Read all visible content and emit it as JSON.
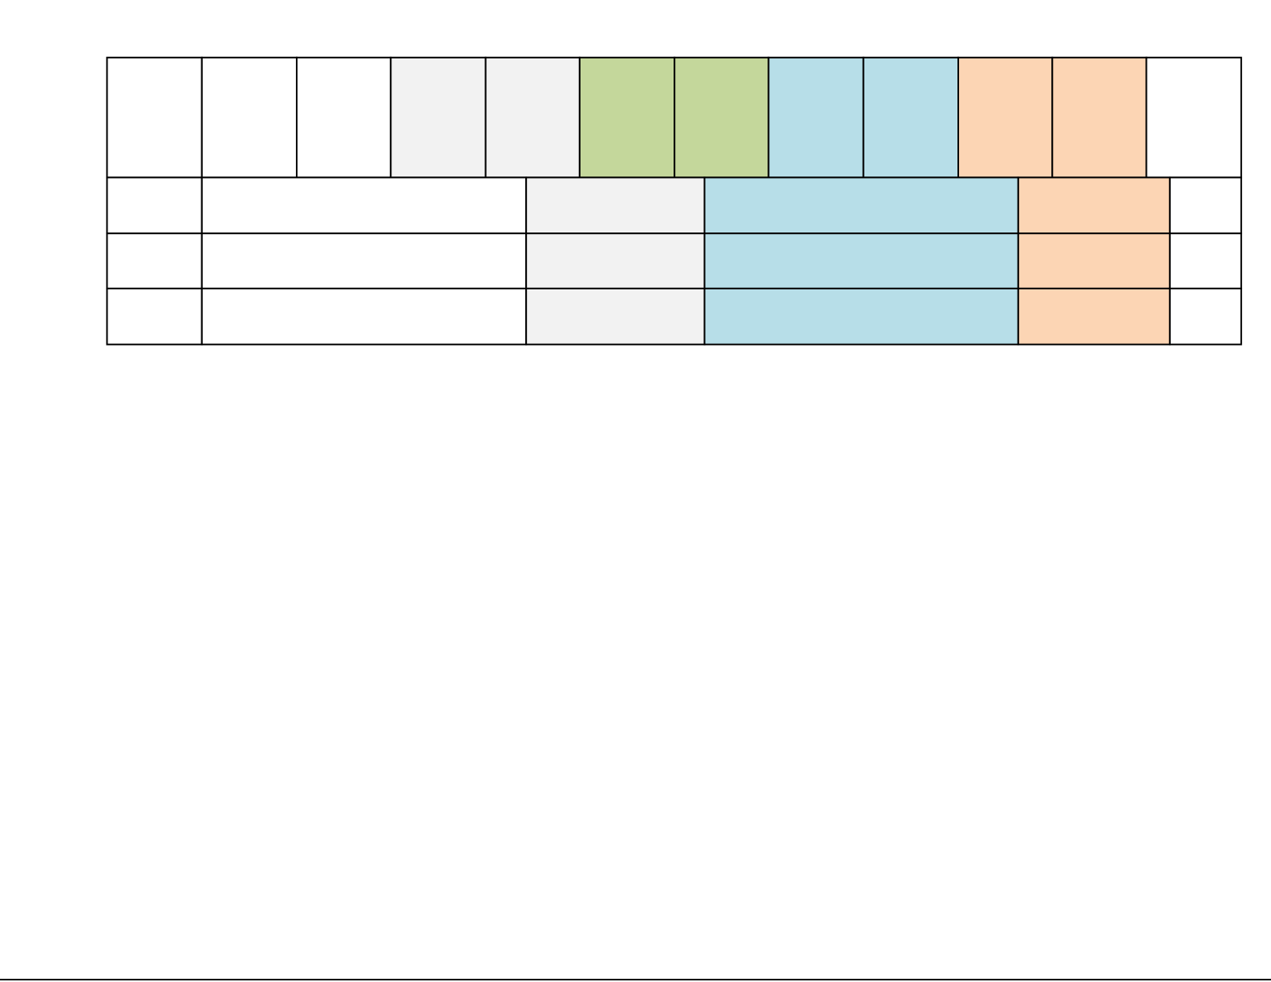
{
  "table": {
    "header_colors": [
      "#ffffff",
      "#ffffff",
      "#ffffff",
      "#f2f2f2",
      "#f2f2f2",
      "#c4d79b",
      "#c4d79b",
      "#b7dee8",
      "#b7dee8",
      "#fcd5b4",
      "#fcd5b4",
      "#ffffff"
    ],
    "row_colors": [
      [
        "#ffffff",
        "#ffffff",
        "#f2f2f2",
        "#b7dee8",
        "#fcd5b4",
        "#ffffff"
      ],
      [
        "#ffffff",
        "#ffffff",
        "#f2f2f2",
        "#b7dee8",
        "#fcd5b4",
        "#ffffff"
      ],
      [
        "#ffffff",
        "#ffffff",
        "#f2f2f2",
        "#b7dee8",
        "#fcd5b4",
        "#ffffff"
      ]
    ]
  }
}
